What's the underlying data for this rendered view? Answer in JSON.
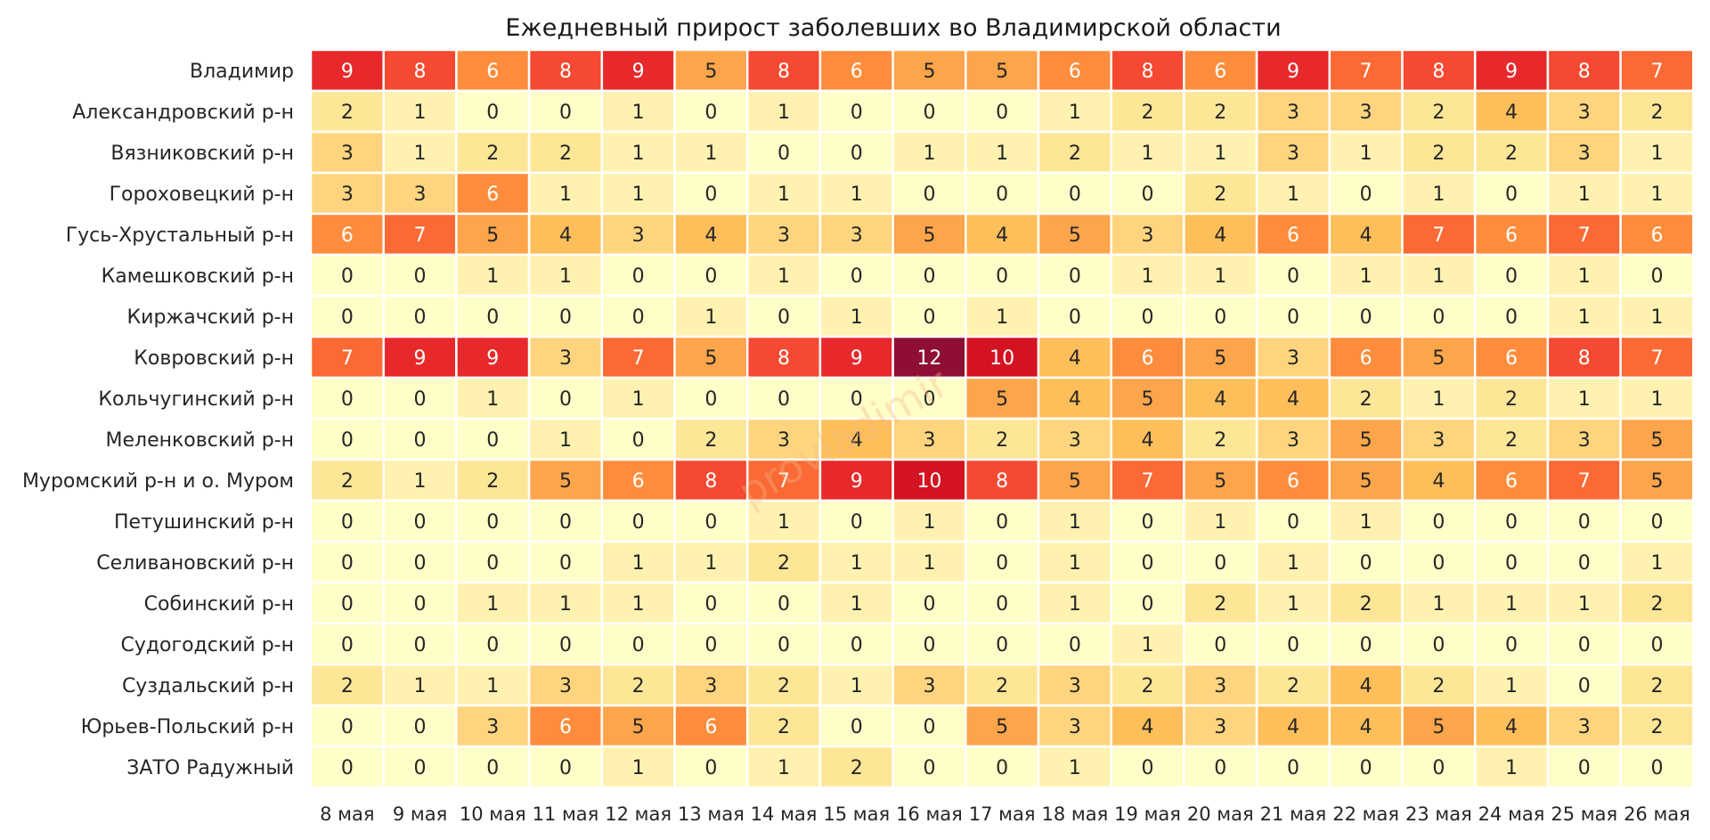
{
  "chart_data": {
    "type": "heatmap",
    "title": "Ежедневный прирост заболевших во Владимирской области",
    "columns": [
      "8 мая",
      "9 мая",
      "10 мая",
      "11 мая",
      "12 мая",
      "13 мая",
      "14 мая",
      "15 мая",
      "16 мая",
      "17 мая",
      "18 мая",
      "19 мая",
      "20 мая",
      "21 мая",
      "22 мая",
      "23 мая",
      "24 мая",
      "25 мая",
      "26 мая"
    ],
    "rows": [
      "Владимир",
      "Александровский р-н",
      "Вязниковский р-н",
      "Гороховецкий р-н",
      "Гусь-Хрустальный р-н",
      "Камешковский р-н",
      "Киржачский р-н",
      "Ковровский р-н",
      "Кольчугинский р-н",
      "Меленковский р-н",
      "Муромский р-н и о. Муром",
      "Петушинский р-н",
      "Селивановский р-н",
      "Собинский р-н",
      "Судогодский р-н",
      "Суздальский р-н",
      "Юрьев-Польский р-н",
      "ЗАТО Радужный"
    ],
    "values": [
      [
        9,
        8,
        6,
        8,
        9,
        5,
        8,
        6,
        5,
        5,
        6,
        8,
        6,
        9,
        7,
        8,
        9,
        8,
        7
      ],
      [
        2,
        1,
        0,
        0,
        1,
        0,
        1,
        0,
        0,
        0,
        1,
        2,
        2,
        3,
        3,
        2,
        4,
        3,
        2
      ],
      [
        3,
        1,
        2,
        2,
        1,
        1,
        0,
        0,
        1,
        1,
        2,
        1,
        1,
        3,
        1,
        2,
        2,
        3,
        1
      ],
      [
        3,
        3,
        6,
        1,
        1,
        0,
        1,
        1,
        0,
        0,
        0,
        0,
        2,
        1,
        0,
        1,
        0,
        1,
        1
      ],
      [
        6,
        7,
        5,
        4,
        3,
        4,
        3,
        3,
        5,
        4,
        5,
        3,
        4,
        6,
        4,
        7,
        6,
        7,
        6
      ],
      [
        0,
        0,
        1,
        1,
        0,
        0,
        1,
        0,
        0,
        0,
        0,
        1,
        1,
        0,
        1,
        1,
        0,
        1,
        0
      ],
      [
        0,
        0,
        0,
        0,
        0,
        1,
        0,
        1,
        0,
        1,
        0,
        0,
        0,
        0,
        0,
        0,
        0,
        1,
        1
      ],
      [
        7,
        9,
        9,
        3,
        7,
        5,
        8,
        9,
        12,
        10,
        4,
        6,
        5,
        3,
        6,
        5,
        6,
        8,
        7
      ],
      [
        0,
        0,
        1,
        0,
        1,
        0,
        0,
        0,
        0,
        5,
        4,
        5,
        4,
        4,
        2,
        1,
        2,
        1,
        1
      ],
      [
        0,
        0,
        0,
        1,
        0,
        2,
        3,
        4,
        3,
        2,
        3,
        4,
        2,
        3,
        5,
        3,
        2,
        3,
        5
      ],
      [
        2,
        1,
        2,
        5,
        6,
        8,
        7,
        9,
        10,
        8,
        5,
        7,
        5,
        6,
        5,
        4,
        6,
        7,
        5
      ],
      [
        0,
        0,
        0,
        0,
        0,
        0,
        1,
        0,
        1,
        0,
        1,
        0,
        1,
        0,
        1,
        0,
        0,
        0,
        0
      ],
      [
        0,
        0,
        0,
        0,
        1,
        1,
        2,
        1,
        1,
        0,
        1,
        0,
        0,
        1,
        0,
        0,
        0,
        0,
        1
      ],
      [
        0,
        0,
        1,
        1,
        1,
        0,
        0,
        1,
        0,
        0,
        1,
        0,
        2,
        1,
        2,
        1,
        1,
        1,
        2
      ],
      [
        0,
        0,
        0,
        0,
        0,
        0,
        0,
        0,
        0,
        0,
        0,
        1,
        0,
        0,
        0,
        0,
        0,
        0,
        0
      ],
      [
        2,
        1,
        1,
        3,
        2,
        3,
        2,
        1,
        3,
        2,
        3,
        2,
        3,
        2,
        4,
        2,
        1,
        0,
        2
      ],
      [
        0,
        0,
        3,
        6,
        5,
        6,
        2,
        0,
        0,
        5,
        3,
        4,
        3,
        4,
        4,
        5,
        4,
        3,
        2
      ],
      [
        0,
        0,
        0,
        0,
        1,
        0,
        1,
        2,
        0,
        0,
        1,
        0,
        0,
        0,
        0,
        0,
        1,
        0,
        0
      ]
    ],
    "colormap": "YlOrRd",
    "vmin": 0,
    "vmax": 12,
    "colors": [
      "#fffdc8",
      "#fff2b0",
      "#fee697",
      "#fed57e",
      "#febf5a",
      "#fda54b",
      "#fd8d3c",
      "#fb6a35",
      "#f54932",
      "#e7292c",
      "#d31322",
      "#bb0a26",
      "#8f0e34"
    ]
  },
  "watermark": "provladimir"
}
